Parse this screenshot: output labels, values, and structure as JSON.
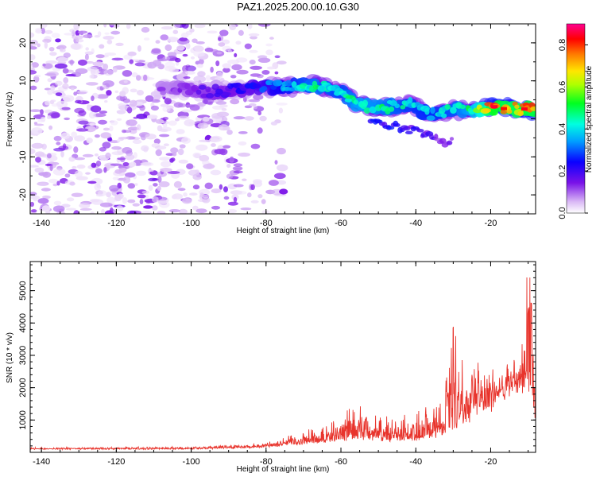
{
  "title": "PAZ1.2025.200.00.10.G30",
  "chart_data": [
    {
      "type": "heatmap",
      "xlabel": "Height of straight line (km)",
      "ylabel": "Frequency (Hz)",
      "xlim": [
        -143,
        -8
      ],
      "ylim": [
        -25,
        25
      ],
      "xticks": [
        -140,
        -120,
        -100,
        -80,
        -60,
        -40,
        -20
      ],
      "yticks": [
        -20,
        -10,
        0,
        10,
        20
      ],
      "colorbar": {
        "label": "Normalized spectral amplitude",
        "range": [
          0.0,
          0.9
        ],
        "ticks": [
          0.0,
          0.2,
          0.4,
          0.6,
          0.8
        ],
        "colormap": "rainbow_white_to_magenta"
      },
      "ridge": {
        "description_points": [
          {
            "x": -105,
            "freq": 8,
            "amp": 0.12
          },
          {
            "x": -95,
            "freq": 7,
            "amp": 0.18
          },
          {
            "x": -85,
            "freq": 8,
            "amp": 0.22
          },
          {
            "x": -75,
            "freq": 8.5,
            "amp": 0.35
          },
          {
            "x": -67,
            "freq": 9,
            "amp": 0.45
          },
          {
            "x": -60,
            "freq": 7,
            "amp": 0.4
          },
          {
            "x": -55,
            "freq": 3.5,
            "amp": 0.5
          },
          {
            "x": -48,
            "freq": 3,
            "amp": 0.45
          },
          {
            "x": -42,
            "freq": 4,
            "amp": 0.4
          },
          {
            "x": -36,
            "freq": 1,
            "amp": 0.38
          },
          {
            "x": -30,
            "freq": 2.5,
            "amp": 0.42
          },
          {
            "x": -25,
            "freq": 2,
            "amp": 0.5
          },
          {
            "x": -19,
            "freq": 3.2,
            "amp": 0.75
          },
          {
            "x": -15,
            "freq": 2.8,
            "amp": 0.7
          },
          {
            "x": -10,
            "freq": 2.5,
            "amp": 0.72
          }
        ],
        "secondary_branch": [
          {
            "x": -50,
            "freq": -1,
            "amp": 0.25
          },
          {
            "x": -40,
            "freq": -3,
            "amp": 0.2
          },
          {
            "x": -32,
            "freq": -6,
            "amp": 0.15
          }
        ]
      },
      "noise_region_x": [
        -143,
        -80
      ]
    },
    {
      "type": "line",
      "xlabel": "Height of straight line (km)",
      "ylabel": "SNR (10 * v/v)",
      "xlim": [
        -143,
        -8
      ],
      "ylim": [
        0,
        5900
      ],
      "xticks": [
        -140,
        -120,
        -100,
        -80,
        -60,
        -40,
        -20
      ],
      "yticks": [
        1000,
        2000,
        3000,
        4000,
        5000
      ],
      "color": "#e8342c",
      "envelope": [
        {
          "x": -143,
          "base": 120,
          "amp": 40
        },
        {
          "x": -100,
          "base": 130,
          "amp": 60
        },
        {
          "x": -85,
          "base": 170,
          "amp": 90
        },
        {
          "x": -78,
          "base": 230,
          "amp": 180
        },
        {
          "x": -70,
          "base": 330,
          "amp": 350
        },
        {
          "x": -62,
          "base": 420,
          "amp": 600
        },
        {
          "x": -56,
          "base": 520,
          "amp": 1300
        },
        {
          "x": -50,
          "base": 480,
          "amp": 700
        },
        {
          "x": -45,
          "base": 450,
          "amp": 800
        },
        {
          "x": -38,
          "base": 500,
          "amp": 900
        },
        {
          "x": -33,
          "base": 650,
          "amp": 1200
        },
        {
          "x": -30,
          "base": 900,
          "amp": 2800
        },
        {
          "x": -26,
          "base": 1200,
          "amp": 2500
        },
        {
          "x": -22,
          "base": 1500,
          "amp": 1000
        },
        {
          "x": -17,
          "base": 2100,
          "amp": 700
        },
        {
          "x": -12,
          "base": 2500,
          "amp": 800
        },
        {
          "x": -9.5,
          "base": 2600,
          "amp": 3100
        },
        {
          "x": -8,
          "base": 1300,
          "amp": 600
        }
      ]
    }
  ]
}
